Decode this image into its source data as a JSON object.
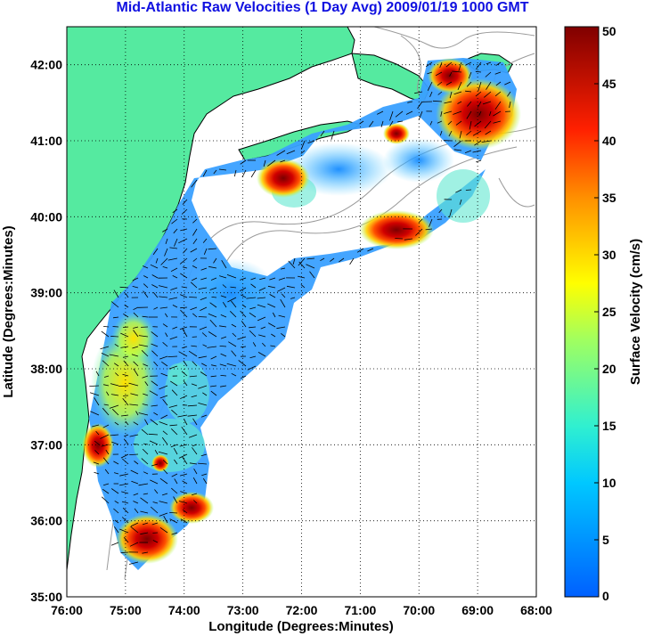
{
  "title": "Mid-Atlantic Raw Velocities (1 Day Avg) 2009/01/19 1000 GMT",
  "map": {
    "xlabel": "Longitude (Degrees:Minutes)",
    "ylabel": "Latitude (Degrees:Minutes)",
    "lon_range": [
      -76,
      -68
    ],
    "lat_range": [
      35,
      42.5
    ],
    "lon_ticks": [
      "76:00",
      "75:00",
      "74:00",
      "73:00",
      "72:00",
      "71:00",
      "70:00",
      "69:00",
      "68:00"
    ],
    "lat_ticks": [
      "35:00",
      "36:00",
      "37:00",
      "38:00",
      "39:00",
      "40:00",
      "41:00",
      "42:00"
    ],
    "grid": true,
    "colors": {
      "land": "#55eaa0",
      "coastline": "#000000",
      "bathymetry": "#9a9a9a",
      "grid": "#000000"
    }
  },
  "colorbar": {
    "label": "Surface Velocity (cm/s)",
    "ticks": [
      "0",
      "5",
      "10",
      "15",
      "20",
      "25",
      "30",
      "35",
      "40",
      "45",
      "50"
    ],
    "range": [
      0,
      50
    ],
    "colormap": "jet"
  }
}
